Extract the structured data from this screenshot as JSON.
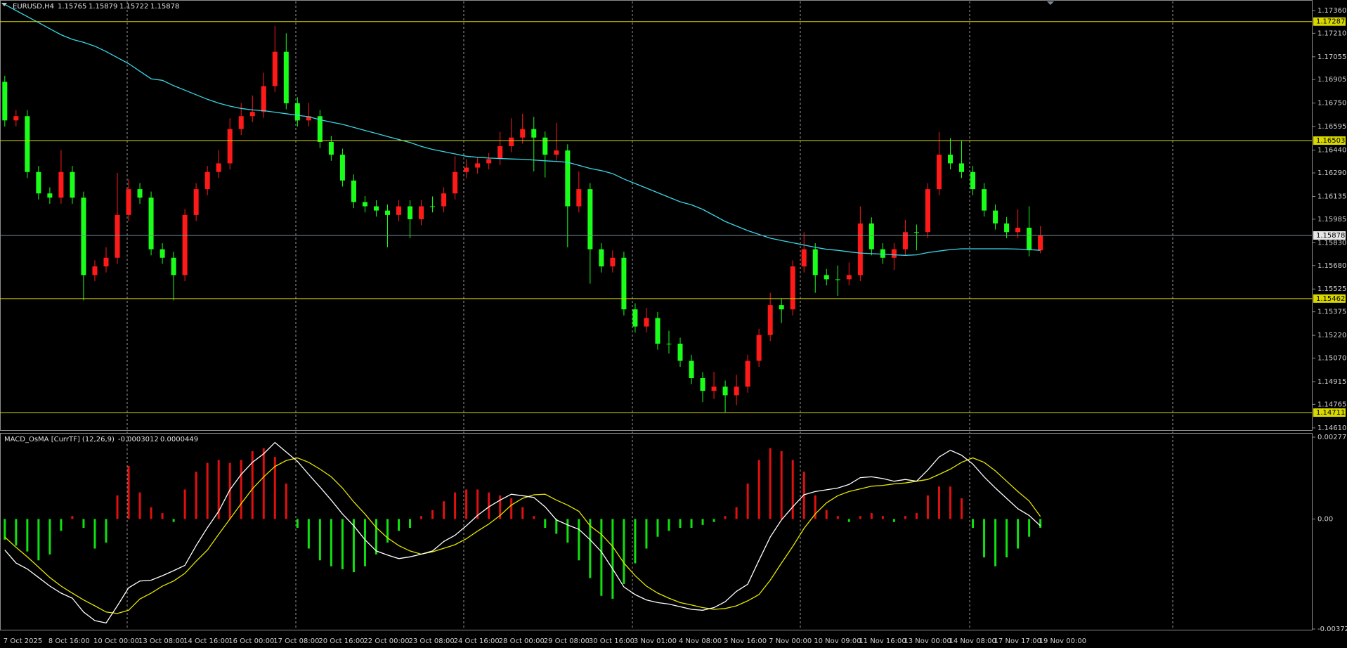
{
  "chart_data": [
    {
      "type": "candlestick",
      "symbol": "EURUSD,H4",
      "quote": {
        "open": 1.15765,
        "high": 1.15879,
        "low": 1.15722,
        "close": 1.15878
      },
      "up_color": "#ff1a1a",
      "down_color": "#1aff1a",
      "categories": [
        "7 Oct 2025",
        null,
        null,
        null,
        "8 Oct 16:00",
        null,
        null,
        null,
        "10 Oct 00:00",
        null,
        null,
        null,
        "13 Oct 08:00",
        null,
        null,
        null,
        "14 Oct 16:00",
        null,
        null,
        null,
        "16 Oct 00:00",
        null,
        null,
        null,
        "17 Oct 08:00",
        null,
        null,
        null,
        "20 Oct 16:00",
        null,
        null,
        null,
        "22 Oct 00:00",
        null,
        null,
        null,
        "23 Oct 08:00",
        null,
        null,
        null,
        "24 Oct 16:00",
        null,
        null,
        null,
        "28 Oct 00:00",
        null,
        null,
        null,
        "29 Oct 08:00",
        null,
        null,
        null,
        "30 Oct 16:00",
        null,
        null,
        null,
        "3 Nov 01:00",
        null,
        null,
        null,
        "4 Nov 08:00",
        null,
        null,
        null,
        "5 Nov 16:00",
        null,
        null,
        null,
        "7 Nov 00:00",
        null,
        null,
        null,
        "10 Nov 09:00",
        null,
        null,
        null,
        "11 Nov 16:00",
        null,
        null,
        null,
        "13 Nov 00:00",
        null,
        null,
        null,
        "14 Nov 08:00",
        null,
        null,
        null,
        "17 Nov 17:00",
        null,
        null,
        null,
        "19 Nov 00:00"
      ],
      "open": [
        1.1689,
        1.16636,
        1.16664,
        1.16296,
        1.16155,
        1.16127,
        1.16296,
        1.16127,
        1.15617,
        1.15674,
        1.15731,
        1.16013,
        1.16183,
        1.16127,
        1.15787,
        1.15731,
        1.15617,
        1.16013,
        1.16183,
        1.16296,
        1.16353,
        1.16579,
        1.16664,
        1.16692,
        1.16862,
        1.17088,
        1.16749,
        1.16636,
        1.16664,
        1.16494,
        1.1641,
        1.1624,
        1.16098,
        1.1607,
        1.16042,
        1.16013,
        1.1607,
        1.15985,
        1.1607,
        1.1607,
        1.16155,
        1.16296,
        1.16325,
        1.16353,
        1.16381,
        1.16466,
        1.16523,
        1.16579,
        1.16523,
        1.1641,
        1.16438,
        1.1607,
        1.16183,
        1.15787,
        1.15674,
        1.15731,
        1.15391,
        1.15278,
        1.15334,
        1.15165,
        1.15165,
        1.15052,
        1.14938,
        1.14854,
        1.14882,
        1.14825,
        1.14882,
        1.15052,
        1.15222,
        1.15419,
        1.15391,
        1.15674,
        1.15787,
        1.15617,
        1.15589,
        1.15589,
        1.15617,
        1.15957,
        1.15787,
        1.15731,
        1.15787,
        1.159,
        1.159,
        1.16183,
        1.1641,
        1.16353,
        1.16296,
        1.16183,
        1.16042,
        1.15957,
        1.159,
        1.15929,
        1.1578
      ],
      "high": [
        1.1693,
        1.16704,
        1.16704,
        1.16336,
        1.16195,
        1.1644,
        1.16336,
        1.16167,
        1.15714,
        1.158,
        1.1629,
        1.1625,
        1.16223,
        1.16167,
        1.15827,
        1.15771,
        1.16053,
        1.16223,
        1.16336,
        1.1644,
        1.1665,
        1.1675,
        1.168,
        1.1695,
        1.17258,
        1.1721,
        1.16789,
        1.1675,
        1.16704,
        1.16534,
        1.1645,
        1.1628,
        1.16138,
        1.1611,
        1.16082,
        1.1611,
        1.1611,
        1.1611,
        1.16135,
        1.16195,
        1.164,
        1.1638,
        1.16393,
        1.16421,
        1.1656,
        1.1665,
        1.1668,
        1.1666,
        1.16563,
        1.1662,
        1.16478,
        1.163,
        1.16223,
        1.15827,
        1.1578,
        1.15771,
        1.15431,
        1.154,
        1.15374,
        1.1525,
        1.15205,
        1.15092,
        1.14978,
        1.1498,
        1.14922,
        1.1496,
        1.15092,
        1.15262,
        1.155,
        1.15459,
        1.15714,
        1.159,
        1.15827,
        1.15657,
        1.1568,
        1.157,
        1.1607,
        1.15997,
        1.15827,
        1.15827,
        1.1598,
        1.1595,
        1.16223,
        1.1656,
        1.1652,
        1.165,
        1.16336,
        1.16223,
        1.16082,
        1.16,
        1.1605,
        1.1607,
        1.1594
      ],
      "low": [
        1.16596,
        1.16596,
        1.16256,
        1.16115,
        1.16087,
        1.16087,
        1.16087,
        1.1545,
        1.15577,
        1.15634,
        1.15691,
        1.15973,
        1.16087,
        1.15747,
        1.15691,
        1.1545,
        1.15577,
        1.15973,
        1.16143,
        1.16256,
        1.16313,
        1.16539,
        1.16624,
        1.16652,
        1.16822,
        1.16709,
        1.16596,
        1.16596,
        1.16454,
        1.1637,
        1.162,
        1.16058,
        1.1603,
        1.16002,
        1.158,
        1.15973,
        1.1586,
        1.15945,
        1.1603,
        1.1603,
        1.16115,
        1.16256,
        1.16285,
        1.16313,
        1.16341,
        1.16426,
        1.16483,
        1.163,
        1.1626,
        1.1637,
        1.158,
        1.1603,
        1.1556,
        1.15634,
        1.15634,
        1.15351,
        1.15238,
        1.15238,
        1.15125,
        1.151,
        1.15012,
        1.14898,
        1.1478,
        1.148,
        1.14711,
        1.1476,
        1.14842,
        1.15012,
        1.15182,
        1.153,
        1.15351,
        1.15634,
        1.155,
        1.15549,
        1.1548,
        1.15549,
        1.15577,
        1.15747,
        1.15691,
        1.1565,
        1.15747,
        1.1578,
        1.1586,
        1.16143,
        1.16313,
        1.16256,
        1.16143,
        1.16002,
        1.15917,
        1.1586,
        1.1586,
        1.1574,
        1.1576
      ],
      "close": [
        1.16636,
        1.16664,
        1.16296,
        1.16155,
        1.16127,
        1.16296,
        1.16127,
        1.15617,
        1.15674,
        1.15731,
        1.16013,
        1.16183,
        1.16127,
        1.15787,
        1.15731,
        1.15617,
        1.16013,
        1.16183,
        1.16296,
        1.16353,
        1.16579,
        1.16664,
        1.16692,
        1.16862,
        1.17088,
        1.16749,
        1.16636,
        1.16664,
        1.16494,
        1.1641,
        1.1624,
        1.16098,
        1.1607,
        1.16042,
        1.16013,
        1.1607,
        1.15985,
        1.1607,
        1.1607,
        1.16155,
        1.16296,
        1.16325,
        1.16353,
        1.16381,
        1.16466,
        1.16523,
        1.16579,
        1.16523,
        1.1641,
        1.16438,
        1.1607,
        1.16183,
        1.15787,
        1.15674,
        1.15731,
        1.15391,
        1.15278,
        1.15334,
        1.15165,
        1.15165,
        1.15052,
        1.14938,
        1.14854,
        1.14882,
        1.14825,
        1.14882,
        1.15052,
        1.15222,
        1.15419,
        1.15391,
        1.15674,
        1.15787,
        1.15617,
        1.15589,
        1.15589,
        1.15617,
        1.15957,
        1.15787,
        1.15731,
        1.15787,
        1.159,
        1.159,
        1.16183,
        1.1641,
        1.16353,
        1.16296,
        1.16183,
        1.16042,
        1.15957,
        1.159,
        1.15929,
        1.1578,
        1.15878
      ],
      "ma": {
        "color": "#39d6e6",
        "values": [
          1.174,
          1.1736,
          1.1732,
          1.1728,
          1.1724,
          1.172,
          1.1717,
          1.1715,
          1.17125,
          1.1709,
          1.1705,
          1.1701,
          1.1696,
          1.1691,
          1.169,
          1.16865,
          1.16835,
          1.16805,
          1.16775,
          1.1675,
          1.1673,
          1.16715,
          1.16705,
          1.167,
          1.1669,
          1.1668,
          1.1667,
          1.1666,
          1.1664,
          1.16625,
          1.1661,
          1.1659,
          1.1657,
          1.1655,
          1.1653,
          1.1651,
          1.1649,
          1.16465,
          1.16445,
          1.1643,
          1.16415,
          1.164,
          1.16393,
          1.16388,
          1.16385,
          1.16382,
          1.1638,
          1.16375,
          1.1637,
          1.16366,
          1.1636,
          1.1634,
          1.1632,
          1.16305,
          1.16285,
          1.1625,
          1.1622,
          1.1619,
          1.1616,
          1.1613,
          1.161,
          1.1608,
          1.1605,
          1.1601,
          1.1597,
          1.1594,
          1.1591,
          1.15885,
          1.1586,
          1.15844,
          1.1583,
          1.15815,
          1.158,
          1.15787,
          1.1578,
          1.1577,
          1.15762,
          1.15758,
          1.15755,
          1.1575,
          1.15747,
          1.1575,
          1.15765,
          1.15775,
          1.15785,
          1.1579,
          1.1579,
          1.1579,
          1.1579,
          1.1579,
          1.15788,
          1.15785,
          1.1578
        ]
      },
      "levels": [
        {
          "value": 1.17287,
          "color": "#d8d800"
        },
        {
          "value": 1.16503,
          "color": "#d8d800"
        },
        {
          "value": 1.15462,
          "color": "#d8d800"
        },
        {
          "value": 1.14711,
          "color": "#d8d800"
        }
      ],
      "price_line": {
        "value": 1.15878,
        "color": "#7a8a99"
      },
      "ylim": [
        1.146,
        1.1742
      ],
      "yticks": [
        {
          "value": 1.1736,
          "label": "1.17360"
        },
        {
          "value": 1.1721,
          "label": "1.17210"
        },
        1.17055,
        1.16905,
        {
          "value": 1.1675,
          "label": "1.16750"
        },
        1.16595,
        {
          "value": 1.1644,
          "label": "1.16440"
        },
        {
          "value": 1.1629,
          "label": "1.16290"
        },
        1.16135,
        1.15985,
        {
          "value": 1.1583,
          "label": "1.15830"
        },
        {
          "value": 1.1568,
          "label": "1.15680"
        },
        1.15525,
        1.15375,
        {
          "value": 1.1522,
          "label": "1.15220"
        },
        {
          "value": 1.1507,
          "label": "1.15070"
        },
        1.14915,
        1.14765,
        {
          "value": 1.1461,
          "label": "1.14610"
        }
      ]
    },
    {
      "type": "macd",
      "title": "MACD_OsMA [CurrTF] (12,26,9)",
      "indicator_values": [
        -0.0003012,
        4.49e-05
      ],
      "pos_color": "#e01010",
      "neg_color": "#10e010",
      "histogram": [
        -0.0007,
        -0.0009,
        -0.0011,
        -0.0014,
        -0.0012,
        -0.0004,
        0.0001,
        -0.0003,
        -0.001,
        -0.0008,
        0.0008,
        0.0018,
        0.0009,
        0.0004,
        0.0002,
        -0.0001,
        0.001,
        0.0016,
        0.0019,
        0.002,
        0.0019,
        0.002,
        0.0023,
        0.0024,
        0.0021,
        0.0012,
        -0.0003,
        -0.001,
        -0.0014,
        -0.0016,
        -0.0017,
        -0.0018,
        -0.0016,
        -0.0012,
        -0.0008,
        -0.0004,
        -0.0003,
        0.0001,
        0.0003,
        0.0006,
        0.0009,
        0.001,
        0.001,
        0.0009,
        0.0008,
        0.0007,
        0.0004,
        0.0001,
        -0.0003,
        -0.0005,
        -0.0008,
        -0.0014,
        -0.002,
        -0.0026,
        -0.0027,
        -0.0022,
        -0.0015,
        -0.001,
        -0.0006,
        -0.0004,
        -0.0003,
        -0.0003,
        -0.0002,
        -0.0001,
        0.0001,
        0.0004,
        0.0012,
        0.002,
        0.0024,
        0.0023,
        0.002,
        0.0016,
        0.0008,
        0.0003,
        0.0001,
        -0.0001,
        0.0001,
        0.0002,
        0.0001,
        -0.0001,
        0.0001,
        0.0002,
        0.0008,
        0.0011,
        0.0011,
        0.0007,
        -0.0003,
        -0.0013,
        -0.0016,
        -0.0013,
        -0.001,
        -0.0006,
        -0.0003
      ],
      "macd": {
        "color": "#ffffff",
        "values": [
          -0.00105,
          -0.00149,
          -0.00169,
          -0.00198,
          -0.00227,
          -0.00251,
          -0.00268,
          -0.00315,
          -0.00344,
          -0.00352,
          -0.00294,
          -0.00233,
          -0.0021,
          -0.00207,
          -0.00192,
          -0.00175,
          -0.00157,
          -0.0009,
          -0.00029,
          0.00026,
          0.00099,
          0.00151,
          0.00192,
          0.00221,
          0.00259,
          0.00227,
          0.00195,
          0.00151,
          0.00108,
          0.00064,
          0.00017,
          -0.00023,
          -0.0007,
          -0.00108,
          -0.00122,
          -0.00134,
          -0.00128,
          -0.00119,
          -0.00108,
          -0.00076,
          -0.00055,
          -0.00023,
          0.00012,
          0.00041,
          0.00064,
          0.00084,
          0.00079,
          0.00073,
          0.00041,
          -3e-05,
          -0.0002,
          -0.00035,
          -0.0007,
          -0.00111,
          -0.00169,
          -0.0023,
          -0.00256,
          -0.00274,
          -0.00283,
          -0.00288,
          -0.00297,
          -0.00306,
          -0.00309,
          -0.003,
          -0.0028,
          -0.00245,
          -0.00221,
          -0.0014,
          -0.00061,
          -3e-05,
          0.00041,
          0.00082,
          0.00093,
          0.00099,
          0.00105,
          0.00117,
          0.0014,
          0.00143,
          0.00137,
          0.00128,
          0.00134,
          0.00128,
          0.00166,
          0.0021,
          0.00233,
          0.00216,
          0.00186,
          0.00143,
          0.00105,
          0.0007,
          0.00035,
          0.00012,
          -0.00023
        ]
      },
      "signal": {
        "color": "#e6e600",
        "values": [
          -0.00061,
          -0.00096,
          -0.00128,
          -0.00163,
          -0.00198,
          -0.00227,
          -0.00251,
          -0.00274,
          -0.00294,
          -0.00315,
          -0.0032,
          -0.00309,
          -0.00271,
          -0.00251,
          -0.00227,
          -0.0021,
          -0.00184,
          -0.00143,
          -0.00105,
          -0.00052,
          0.0,
          0.00052,
          0.00102,
          0.00143,
          0.00178,
          0.00198,
          0.00207,
          0.00192,
          0.00169,
          0.00143,
          0.00105,
          0.00058,
          0.00017,
          -0.00029,
          -0.00064,
          -0.0009,
          -0.00108,
          -0.00119,
          -0.00111,
          -0.00099,
          -0.00087,
          -0.00067,
          -0.00041,
          -0.00017,
          0.00012,
          0.00047,
          0.0007,
          0.00082,
          0.00084,
          0.00064,
          0.00047,
          0.00026,
          -0.00023,
          -0.00052,
          -0.00093,
          -0.00149,
          -0.00192,
          -0.00227,
          -0.00251,
          -0.00268,
          -0.00283,
          -0.00291,
          -0.003,
          -0.00306,
          -0.00303,
          -0.00294,
          -0.00277,
          -0.00256,
          -0.00207,
          -0.00149,
          -0.00093,
          -0.00032,
          0.00017,
          0.00055,
          0.00079,
          0.00093,
          0.00102,
          0.00111,
          0.00114,
          0.00119,
          0.00122,
          0.00128,
          0.00134,
          0.00151,
          0.00169,
          0.00192,
          0.00207,
          0.00192,
          0.00163,
          0.00128,
          0.00093,
          0.00061,
          9e-05
        ]
      },
      "ylim": [
        -0.0037252,
        0.0027719
      ],
      "yticks": [
        0.0027719,
        {
          "value": 0,
          "label": "0.00"
        },
        -0.0037252
      ]
    }
  ]
}
